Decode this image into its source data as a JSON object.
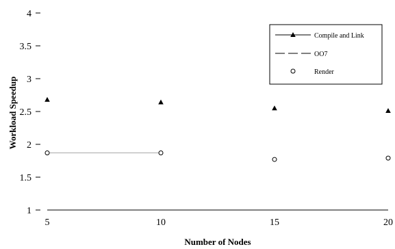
{
  "chart_data": {
    "type": "scatter",
    "title": "",
    "xlabel": "Number of Nodes",
    "ylabel": "Workload Speedup",
    "xlim": [
      5,
      20
    ],
    "ylim": [
      1,
      4
    ],
    "x_ticks": [
      "5",
      "10",
      "15",
      "20"
    ],
    "y_ticks": [
      "1",
      "1.5",
      "2",
      "2.5",
      "3",
      "3.5",
      "4"
    ],
    "grid": false,
    "legend_position": "top-right",
    "series": [
      {
        "name": "Compile and Link",
        "marker": "triangle",
        "line": "none",
        "x": [
          5,
          10,
          15,
          20
        ],
        "y": [
          2.68,
          2.64,
          2.55,
          2.51
        ]
      },
      {
        "name": "OO7",
        "marker": "none",
        "line": "dashed",
        "x": [
          5,
          10
        ],
        "y": [
          1.87,
          1.87
        ]
      },
      {
        "name": "Render",
        "marker": "circle",
        "line": "none",
        "x": [
          5,
          10,
          15,
          20
        ],
        "y": [
          1.87,
          1.87,
          1.77,
          1.79
        ]
      }
    ]
  }
}
